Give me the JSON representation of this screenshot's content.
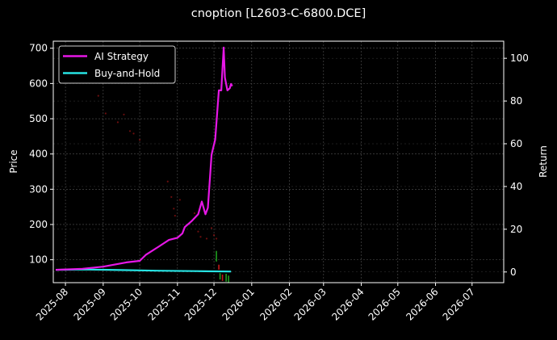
{
  "title": "cnoption [L2603-C-6800.DCE]",
  "colors": {
    "background": "#000000",
    "ai_strategy": "#e617e6",
    "buy_and_hold": "#27e3e3",
    "candle_up": "#1f9e1f",
    "candle_down": "#c41a1a",
    "grid": "#555555",
    "axis": "#ffffff"
  },
  "chart_data": {
    "type": "line",
    "title": "cnoption [L2603-C-6800.DCE]",
    "xlabel": "",
    "ylabel": "Price",
    "ylabel_right": "Return",
    "x_ticks": [
      "2025-08",
      "2025-09",
      "2025-10",
      "2025-11",
      "2025-12",
      "2026-01",
      "2026-02",
      "2026-03",
      "2026-04",
      "2026-05",
      "2026-06",
      "2026-07"
    ],
    "y_ticks_left": [
      100,
      200,
      300,
      400,
      500,
      600,
      700
    ],
    "y_ticks_right": [
      0,
      20,
      40,
      60,
      80,
      100
    ],
    "ylim_left": [
      35,
      720
    ],
    "ylim_right": [
      -5,
      108
    ],
    "grid": true,
    "legend_position": "upper left",
    "legend": [
      "AI Strategy",
      "Buy-and-Hold"
    ],
    "series": [
      {
        "name": "AI Strategy",
        "axis": "right",
        "x": [
          "2025-07-24",
          "2025-08-15",
          "2025-09-01",
          "2025-09-20",
          "2025-10-01",
          "2025-10-06",
          "2025-10-17",
          "2025-10-25",
          "2025-11-01",
          "2025-11-05",
          "2025-11-07",
          "2025-11-13",
          "2025-11-18",
          "2025-11-21",
          "2025-11-24",
          "2025-11-26",
          "2025-11-29",
          "2025-12-02",
          "2025-12-05",
          "2025-12-07",
          "2025-12-09",
          "2025-12-10",
          "2025-12-12",
          "2025-12-14",
          "2025-12-15",
          "2025-12-16"
        ],
        "values": [
          1,
          1.5,
          2.5,
          4.5,
          5.2,
          8,
          12,
          15,
          16,
          18,
          21,
          24,
          27,
          33,
          27,
          30,
          55,
          62,
          85,
          85,
          105,
          91,
          85,
          86,
          88,
          87
        ]
      },
      {
        "name": "Buy-and-Hold",
        "axis": "right",
        "x": [
          "2025-07-24",
          "2025-08-15",
          "2025-09-15",
          "2025-10-15",
          "2025-11-15",
          "2025-12-15"
        ],
        "values": [
          1,
          1.2,
          0.9,
          0.6,
          0.4,
          0.2
        ]
      },
      {
        "name": "Price",
        "axis": "left",
        "type": "scatter",
        "x": [
          "2025-08-28",
          "2025-09-03",
          "2025-09-13",
          "2025-09-18",
          "2025-09-23",
          "2025-09-26",
          "2025-10-01",
          "2025-10-24",
          "2025-10-27",
          "2025-10-29",
          "2025-10-30",
          "2025-11-03",
          "2025-11-15",
          "2025-11-18",
          "2025-11-20",
          "2025-11-25",
          "2025-11-29",
          "2025-12-01",
          "2025-12-03",
          "2025-12-05",
          "2025-12-08",
          "2025-12-10",
          "2025-12-12"
        ],
        "values": [
          565,
          515,
          490,
          512,
          465,
          458,
          440,
          322,
          278,
          245,
          225,
          270,
          232,
          180,
          165,
          160,
          190,
          170,
          160,
          115,
          85,
          60,
          50
        ]
      }
    ]
  }
}
